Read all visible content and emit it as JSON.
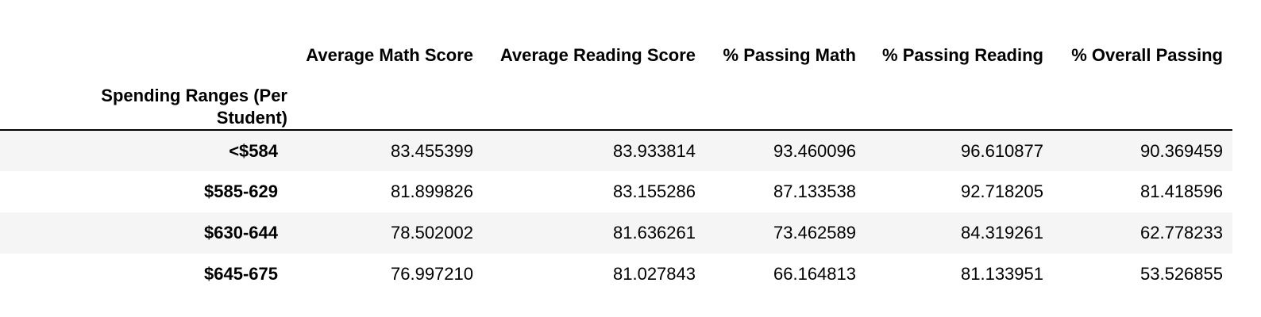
{
  "table": {
    "index_name": "Spending Ranges (Per Student)",
    "columns": [
      "Average Math Score",
      "Average Reading Score",
      "% Passing Math",
      "% Passing Reading",
      "% Overall Passing"
    ],
    "rows": [
      {
        "label": "<$584",
        "values": [
          "83.455399",
          "83.933814",
          "93.460096",
          "96.610877",
          "90.369459"
        ]
      },
      {
        "label": "$585-629",
        "values": [
          "81.899826",
          "83.155286",
          "87.133538",
          "92.718205",
          "81.418596"
        ]
      },
      {
        "label": "$630-644",
        "values": [
          "78.502002",
          "81.636261",
          "73.462589",
          "84.319261",
          "62.778233"
        ]
      },
      {
        "label": "$645-675",
        "values": [
          "76.997210",
          "81.027843",
          "66.164813",
          "81.133951",
          "53.526855"
        ]
      }
    ]
  }
}
